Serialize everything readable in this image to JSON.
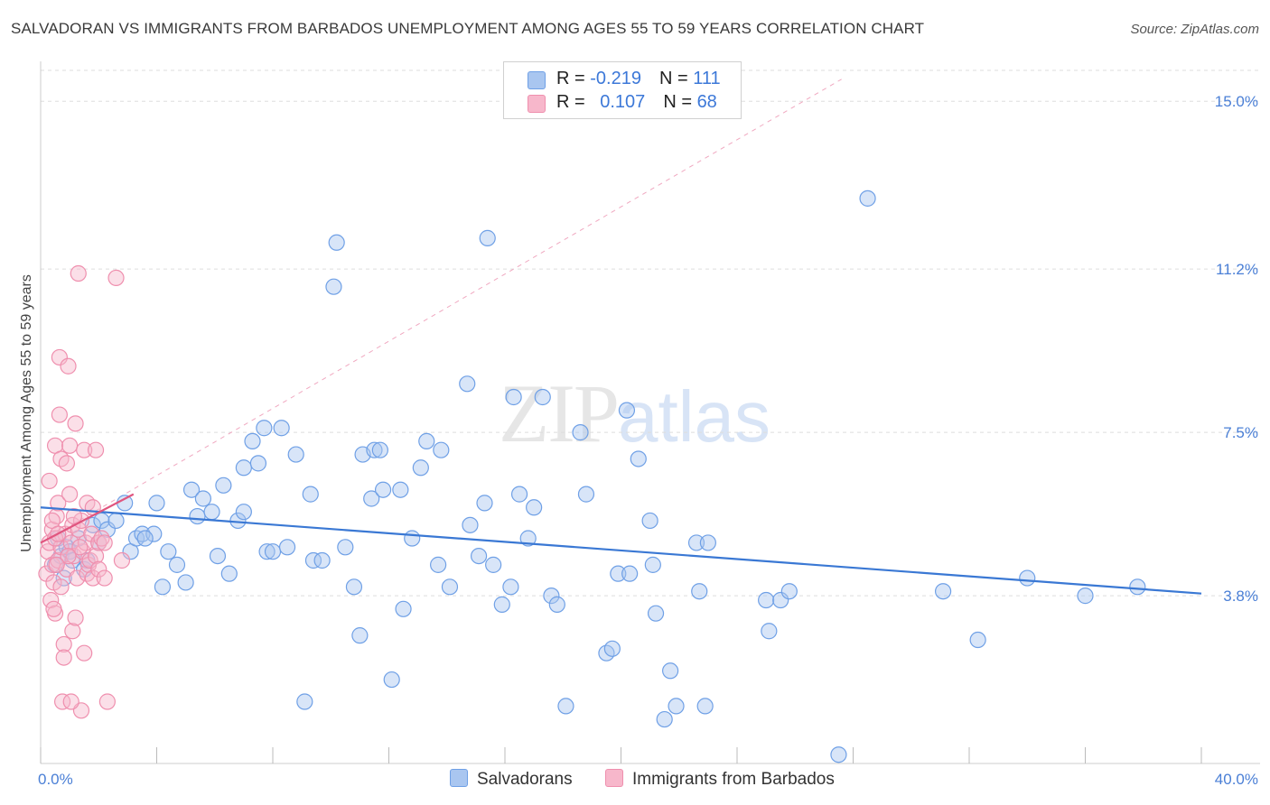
{
  "title": "SALVADORAN VS IMMIGRANTS FROM BARBADOS UNEMPLOYMENT AMONG AGES 55 TO 59 YEARS CORRELATION CHART",
  "source": "Source: ZipAtlas.com",
  "watermark": {
    "zip": "ZIP",
    "atlas": "atlas"
  },
  "legend": {
    "rows": [
      {
        "r_label": "R = ",
        "r_value": "-0.219",
        "n_label": "N = ",
        "n_value": "111",
        "color": "#a9c6f0"
      },
      {
        "r_label": "R = ",
        "r_value": "0.107",
        "n_label": "N = ",
        "n_value": "68",
        "color": "#f7b7cb"
      }
    ]
  },
  "bottom_legend": {
    "series1": "Salvadorans",
    "series2": "Immigrants from Barbados"
  },
  "chart_data": {
    "type": "scatter",
    "title": "SALVADORAN VS IMMIGRANTS FROM BARBADOS UNEMPLOYMENT AMONG AGES 55 TO 59 YEARS CORRELATION CHART",
    "xlabel": "",
    "ylabel": "Unemployment Among Ages 55 to 59 years",
    "xlim": [
      0,
      40
    ],
    "ylim": [
      0,
      15.7
    ],
    "x_tick_labels": [
      "0.0%",
      "40.0%"
    ],
    "y_tick_labels": [
      "3.8%",
      "7.5%",
      "11.2%",
      "15.0%"
    ],
    "y_ticks": [
      3.8,
      7.5,
      11.2,
      15.0
    ],
    "grid": true,
    "legend_position": "top-center",
    "series": [
      {
        "name": "Salvadorans",
        "color": "#6fa0e6",
        "fill": "#a9c6f0",
        "trend": {
          "x": [
            0,
            40
          ],
          "y": [
            5.8,
            3.85
          ]
        },
        "points": [
          [
            0.5,
            4.5
          ],
          [
            0.6,
            5.1
          ],
          [
            0.7,
            4.7
          ],
          [
            0.8,
            4.2
          ],
          [
            0.9,
            4.9
          ],
          [
            1.0,
            4.8
          ],
          [
            1.1,
            4.6
          ],
          [
            1.3,
            5.1
          ],
          [
            1.5,
            4.4
          ],
          [
            1.6,
            4.6
          ],
          [
            1.8,
            5.4
          ],
          [
            2.0,
            5.0
          ],
          [
            2.1,
            5.5
          ],
          [
            2.3,
            5.3
          ],
          [
            2.6,
            5.5
          ],
          [
            2.9,
            5.9
          ],
          [
            3.1,
            4.8
          ],
          [
            3.3,
            5.1
          ],
          [
            3.5,
            5.2
          ],
          [
            3.9,
            5.2
          ],
          [
            3.6,
            5.1
          ],
          [
            4.0,
            5.9
          ],
          [
            4.2,
            4.0
          ],
          [
            4.4,
            4.8
          ],
          [
            4.7,
            4.5
          ],
          [
            5.0,
            4.1
          ],
          [
            5.2,
            6.2
          ],
          [
            5.4,
            5.6
          ],
          [
            5.6,
            6.0
          ],
          [
            5.9,
            5.7
          ],
          [
            6.1,
            4.7
          ],
          [
            6.3,
            6.3
          ],
          [
            6.5,
            4.3
          ],
          [
            6.8,
            5.5
          ],
          [
            7.0,
            5.7
          ],
          [
            7.0,
            6.7
          ],
          [
            7.3,
            7.3
          ],
          [
            7.5,
            6.8
          ],
          [
            7.7,
            7.6
          ],
          [
            7.8,
            4.8
          ],
          [
            8.0,
            4.8
          ],
          [
            8.3,
            7.6
          ],
          [
            8.5,
            4.9
          ],
          [
            8.8,
            7.0
          ],
          [
            9.1,
            1.4
          ],
          [
            9.3,
            6.1
          ],
          [
            9.4,
            4.6
          ],
          [
            9.7,
            4.6
          ],
          [
            10.1,
            10.8
          ],
          [
            10.2,
            11.8
          ],
          [
            10.5,
            4.9
          ],
          [
            10.8,
            4.0
          ],
          [
            11.0,
            2.9
          ],
          [
            11.1,
            7.0
          ],
          [
            11.4,
            6.0
          ],
          [
            11.5,
            7.1
          ],
          [
            11.7,
            7.1
          ],
          [
            11.8,
            6.2
          ],
          [
            12.1,
            1.9
          ],
          [
            12.4,
            6.2
          ],
          [
            12.5,
            3.5
          ],
          [
            12.8,
            5.1
          ],
          [
            13.1,
            6.7
          ],
          [
            13.3,
            7.3
          ],
          [
            13.8,
            7.1
          ],
          [
            13.7,
            4.5
          ],
          [
            14.1,
            4.0
          ],
          [
            14.7,
            8.6
          ],
          [
            14.8,
            5.4
          ],
          [
            15.1,
            4.7
          ],
          [
            15.4,
            11.9
          ],
          [
            15.3,
            5.9
          ],
          [
            15.6,
            4.5
          ],
          [
            15.9,
            3.6
          ],
          [
            16.2,
            4.0
          ],
          [
            16.3,
            8.3
          ],
          [
            16.5,
            6.1
          ],
          [
            16.8,
            5.1
          ],
          [
            17.0,
            5.8
          ],
          [
            17.3,
            8.3
          ],
          [
            17.6,
            3.8
          ],
          [
            17.8,
            3.6
          ],
          [
            18.1,
            1.3
          ],
          [
            18.6,
            7.5
          ],
          [
            18.8,
            6.1
          ],
          [
            19.5,
            2.5
          ],
          [
            19.7,
            2.6
          ],
          [
            19.9,
            4.3
          ],
          [
            20.2,
            8.0
          ],
          [
            20.3,
            4.3
          ],
          [
            20.6,
            6.9
          ],
          [
            21.0,
            5.5
          ],
          [
            21.1,
            4.5
          ],
          [
            21.2,
            3.4
          ],
          [
            21.5,
            1.0
          ],
          [
            21.7,
            2.1
          ],
          [
            21.9,
            1.3
          ],
          [
            22.6,
            5.0
          ],
          [
            22.7,
            3.9
          ],
          [
            22.9,
            1.3
          ],
          [
            23.0,
            5.0
          ],
          [
            25.0,
            3.7
          ],
          [
            25.1,
            3.0
          ],
          [
            25.5,
            3.7
          ],
          [
            25.8,
            3.9
          ],
          [
            27.5,
            0.2
          ],
          [
            28.5,
            12.8
          ],
          [
            31.1,
            3.9
          ],
          [
            32.3,
            2.8
          ],
          [
            34.0,
            4.2
          ],
          [
            36.0,
            3.8
          ],
          [
            37.8,
            4.0
          ]
        ]
      },
      {
        "name": "Immigrants from Barbados",
        "color": "#ef8fae",
        "fill": "#f7b7cb",
        "trend": {
          "x": [
            0,
            3.2
          ],
          "y": [
            5.0,
            6.1
          ]
        },
        "trend_extended": {
          "x": [
            0,
            27.6
          ],
          "y": [
            5.0,
            15.5
          ]
        },
        "points": [
          [
            0.2,
            4.3
          ],
          [
            0.25,
            4.8
          ],
          [
            0.3,
            5.0
          ],
          [
            0.3,
            6.4
          ],
          [
            0.35,
            3.7
          ],
          [
            0.4,
            4.5
          ],
          [
            0.4,
            5.3
          ],
          [
            0.45,
            4.1
          ],
          [
            0.5,
            7.2
          ],
          [
            0.5,
            3.4
          ],
          [
            0.55,
            5.6
          ],
          [
            0.6,
            4.6
          ],
          [
            0.6,
            5.9
          ],
          [
            0.65,
            9.2
          ],
          [
            0.65,
            7.9
          ],
          [
            0.7,
            6.9
          ],
          [
            0.7,
            4.9
          ],
          [
            0.75,
            1.4
          ],
          [
            0.8,
            2.7
          ],
          [
            0.8,
            2.4
          ],
          [
            0.85,
            5.2
          ],
          [
            0.9,
            6.8
          ],
          [
            0.9,
            4.4
          ],
          [
            0.95,
            9.0
          ],
          [
            1.0,
            7.2
          ],
          [
            1.0,
            6.1
          ],
          [
            1.05,
            5.0
          ],
          [
            1.1,
            5.4
          ],
          [
            1.1,
            3.0
          ],
          [
            1.15,
            4.7
          ],
          [
            1.2,
            3.3
          ],
          [
            1.2,
            7.7
          ],
          [
            1.25,
            4.2
          ],
          [
            1.3,
            5.3
          ],
          [
            1.3,
            11.1
          ],
          [
            1.4,
            1.2
          ],
          [
            1.4,
            5.5
          ],
          [
            1.45,
            4.8
          ],
          [
            1.5,
            7.1
          ],
          [
            1.5,
            2.5
          ],
          [
            1.55,
            5.0
          ],
          [
            1.6,
            4.3
          ],
          [
            1.6,
            5.9
          ],
          [
            1.65,
            4.5
          ],
          [
            1.7,
            4.6
          ],
          [
            1.75,
            5.2
          ],
          [
            1.8,
            4.2
          ],
          [
            1.8,
            5.8
          ],
          [
            1.9,
            7.1
          ],
          [
            1.9,
            4.7
          ],
          [
            2.0,
            5.0
          ],
          [
            2.0,
            4.4
          ],
          [
            2.1,
            5.1
          ],
          [
            2.2,
            5.0
          ],
          [
            2.2,
            4.2
          ],
          [
            1.35,
            4.9
          ],
          [
            0.5,
            5.1
          ],
          [
            0.95,
            4.7
          ],
          [
            0.55,
            4.5
          ],
          [
            0.7,
            4.0
          ],
          [
            1.15,
            5.6
          ],
          [
            0.45,
            3.5
          ],
          [
            1.05,
            1.4
          ],
          [
            2.3,
            1.4
          ],
          [
            2.6,
            11.0
          ],
          [
            2.8,
            4.6
          ],
          [
            0.4,
            5.5
          ],
          [
            0.6,
            5.2
          ]
        ]
      }
    ]
  }
}
